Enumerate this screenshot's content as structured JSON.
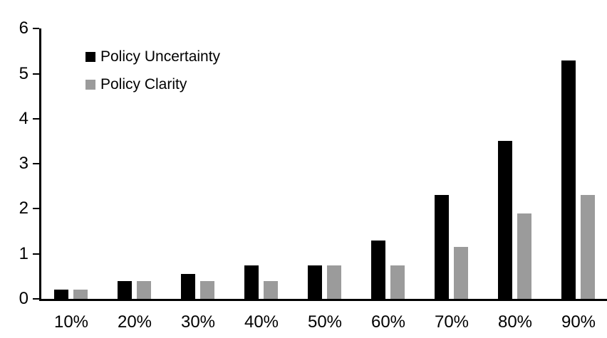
{
  "chart_data": {
    "type": "bar",
    "title": "",
    "xlabel": "",
    "ylabel": "",
    "categories": [
      "10%",
      "20%",
      "30%",
      "40%",
      "50%",
      "60%",
      "70%",
      "80%",
      "90%"
    ],
    "series": [
      {
        "name": "Policy Uncertainty",
        "color": "#000000",
        "values": [
          0.2,
          0.4,
          0.55,
          0.75,
          0.75,
          1.3,
          2.3,
          3.5,
          5.3
        ]
      },
      {
        "name": "Policy Clarity",
        "color": "#9b9b9b",
        "values": [
          0.2,
          0.4,
          0.4,
          0.4,
          0.75,
          0.75,
          1.15,
          1.9,
          2.3
        ]
      }
    ],
    "ylim": [
      0,
      6
    ],
    "yticks": [
      0,
      1,
      2,
      3,
      4,
      5,
      6
    ],
    "grid": false,
    "legend_position": "inside-top-left",
    "axis_color": "#000000",
    "background_color": "#ffffff"
  }
}
